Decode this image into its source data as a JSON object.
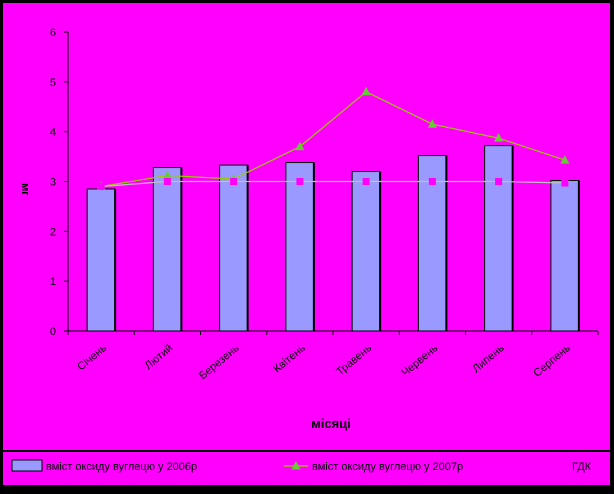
{
  "chart_data": {
    "type": "bar",
    "categories": [
      "Січень",
      "Лютий",
      "Березень",
      "Квітень",
      "Травень",
      "Червень",
      "Липень",
      "Серпень"
    ],
    "series": [
      {
        "name": "вміст оксиду вуглецю у 2006р",
        "type": "bar",
        "color": "#9999FF",
        "values": [
          2.85,
          3.28,
          3.33,
          3.38,
          3.2,
          3.52,
          3.72,
          3.02
        ]
      },
      {
        "name": "вміст оксиду вуглецю у 2007р",
        "type": "line",
        "color": "#99CC00",
        "marker_color": "#66CC33",
        "values": [
          2.9,
          3.12,
          3.05,
          3.7,
          4.8,
          4.15,
          3.87,
          3.43
        ]
      },
      {
        "name": "ГДК",
        "type": "line",
        "color": "#C0C0C0",
        "marker_color": "#FF00FF",
        "values": [
          2.9,
          3.0,
          3.0,
          3.0,
          3.0,
          3.0,
          3.0,
          2.97
        ]
      }
    ],
    "xlabel": "місяці",
    "ylabel": "мг",
    "ylim": [
      0,
      6
    ],
    "yticks": [
      "0",
      "1",
      "2",
      "3",
      "4",
      "5",
      "6"
    ],
    "grid": false,
    "legend_position": "bottom",
    "colors": {
      "page_background": "#000000",
      "chart_area": "#FF00FF",
      "bar_fill": "#9999FF",
      "bar_stroke": "#000000",
      "axis": "#000000",
      "text": "#000000"
    }
  }
}
